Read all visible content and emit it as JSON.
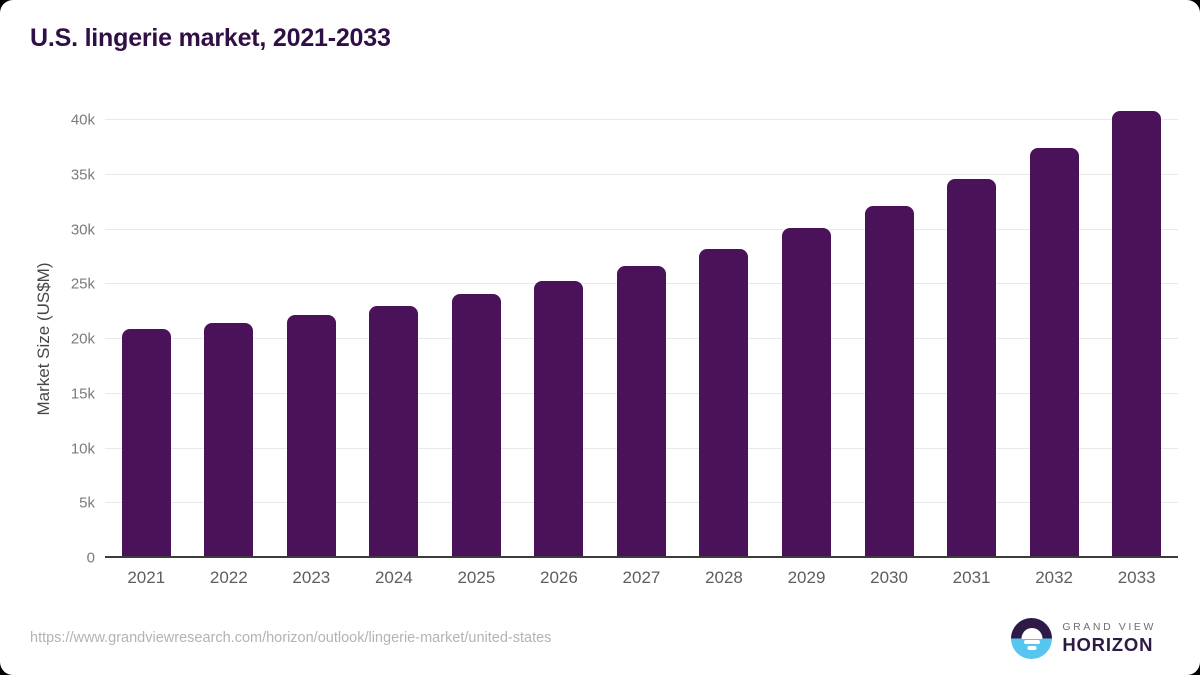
{
  "title": "U.S. lingerie market, 2021-2033",
  "chart_data": {
    "type": "bar",
    "title": "U.S. lingerie market, 2021-2033",
    "xlabel": "",
    "ylabel": "Market Size (US$M)",
    "categories": [
      "2021",
      "2022",
      "2023",
      "2024",
      "2025",
      "2026",
      "2027",
      "2028",
      "2029",
      "2030",
      "2031",
      "2032",
      "2033"
    ],
    "values": [
      20900,
      21450,
      22150,
      23050,
      24100,
      25300,
      26650,
      28250,
      30100,
      32150,
      34600,
      37450,
      40800
    ],
    "unit": "US$M",
    "ylim": [
      0,
      40000
    ],
    "ytick_step": 5000,
    "ytick_labels": [
      "0",
      "5k",
      "10k",
      "15k",
      "20k",
      "25k",
      "30k",
      "35k",
      "40k"
    ],
    "grid": true,
    "legend": false,
    "bar_color": "#4a1259"
  },
  "colors": {
    "bar": "#4a1259",
    "title_text": "#2f0f45",
    "gridline": "#e9e9e9",
    "baseline": "#3c3c3c",
    "tick_label": "#7b7b7b",
    "url_text": "#b3b3b3",
    "logo_dark": "#2d1a47",
    "logo_blue": "#56c5f0"
  },
  "footer": {
    "source_url": "https://www.grandviewresearch.com/horizon/outlook/lingerie-market/united-states",
    "logo": {
      "line1": "GRAND VIEW",
      "line2": "HORIZON"
    }
  }
}
